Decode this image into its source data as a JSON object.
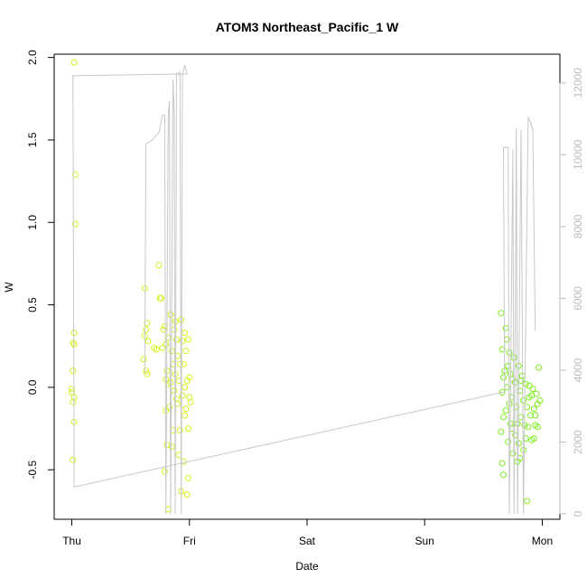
{
  "chart_data": {
    "type": "scatter",
    "title": "ATOM3 Northeast_Pacific_1 W",
    "xlabel": "Date",
    "ylabel": "W",
    "x_unit": "days (Thu = 0)",
    "xlim": [
      -0.15,
      4.15
    ],
    "ylim": [
      -0.8,
      2.02
    ],
    "y2lim": [
      -150,
      12800
    ],
    "x_ticks": [
      {
        "value": 0,
        "label": "Thu"
      },
      {
        "value": 1,
        "label": "Fri"
      },
      {
        "value": 2,
        "label": "Sat"
      },
      {
        "value": 3,
        "label": "Sun"
      },
      {
        "value": 4,
        "label": "Mon"
      }
    ],
    "y_ticks": [
      -0.5,
      0.0,
      0.5,
      1.0,
      1.5,
      2.0
    ],
    "y2_ticks": [
      0,
      2000,
      4000,
      6000,
      8000,
      10000,
      12000
    ],
    "colors": {
      "line": "#c8c8c8",
      "axis": "#000000",
      "right_axis": "#bdbdbd",
      "points_early": "#d9f21c",
      "points_late": "#7ff01c"
    },
    "series": [
      {
        "kind": "points",
        "color_key": "points_early",
        "points": [
          [
            0.02,
            1.97
          ],
          [
            0.03,
            1.29
          ],
          [
            0.03,
            0.99
          ],
          [
            0.02,
            0.33
          ],
          [
            0.01,
            0.27
          ],
          [
            0.02,
            0.26
          ],
          [
            0.01,
            0.1
          ],
          [
            0.0,
            -0.01
          ],
          [
            0.0,
            -0.03
          ],
          [
            0.02,
            -0.06
          ],
          [
            0.01,
            -0.09
          ],
          [
            0.02,
            -0.21
          ],
          [
            0.01,
            -0.44
          ],
          [
            0.62,
            0.6
          ],
          [
            0.64,
            0.39
          ],
          [
            0.63,
            0.35
          ],
          [
            0.62,
            0.31
          ],
          [
            0.65,
            0.28
          ],
          [
            0.61,
            0.17
          ],
          [
            0.63,
            0.1
          ],
          [
            0.64,
            0.08
          ],
          [
            0.7,
            0.24
          ],
          [
            0.72,
            0.23
          ],
          [
            0.74,
            0.74
          ],
          [
            0.75,
            0.54
          ],
          [
            0.76,
            0.54
          ],
          [
            0.78,
            0.35
          ],
          [
            0.79,
            0.37
          ],
          [
            0.8,
            0.26
          ],
          [
            0.77,
            0.24
          ],
          [
            0.81,
            0.1
          ],
          [
            0.8,
            0.05
          ],
          [
            0.82,
            0.02
          ],
          [
            0.8,
            -0.14
          ],
          [
            0.81,
            -0.35
          ],
          [
            0.79,
            -0.51
          ],
          [
            0.82,
            -0.74
          ],
          [
            0.84,
            0.44
          ],
          [
            0.85,
            0.22
          ],
          [
            0.86,
            0.14
          ],
          [
            0.84,
            0.03
          ],
          [
            0.87,
            -0.02
          ],
          [
            0.85,
            -0.36
          ],
          [
            0.88,
            0.4
          ],
          [
            0.89,
            0.29
          ],
          [
            0.9,
            0.19
          ],
          [
            0.91,
            0.04
          ],
          [
            0.9,
            -0.1
          ],
          [
            0.92,
            -0.26
          ],
          [
            0.93,
            0.41
          ],
          [
            0.94,
            0.28
          ],
          [
            0.95,
            0.14
          ],
          [
            0.94,
            -0.05
          ],
          [
            0.96,
            -0.17
          ],
          [
            0.95,
            -0.45
          ],
          [
            0.96,
            0.33
          ],
          [
            0.97,
            0.22
          ],
          [
            0.98,
            0.04
          ],
          [
            0.97,
            -0.13
          ],
          [
            0.99,
            -0.25
          ],
          [
            0.98,
            -0.65
          ],
          [
            0.99,
            0.29
          ],
          [
            1.0,
            0.06
          ],
          [
            1.0,
            -0.06
          ],
          [
            1.01,
            -0.09
          ],
          [
            0.99,
            -0.55
          ],
          [
            0.83,
            -0.12
          ],
          [
            0.86,
            -0.26
          ],
          [
            0.88,
            0.08
          ],
          [
            0.91,
            -0.41
          ],
          [
            0.93,
            -0.63
          ],
          [
            0.82,
            0.3
          ],
          [
            0.87,
            0.35
          ],
          [
            0.89,
            -0.07
          ],
          [
            0.92,
            0.14
          ],
          [
            0.96,
            0.0
          ]
        ]
      },
      {
        "kind": "points",
        "color_key": "points_late",
        "points": [
          [
            3.65,
            0.45
          ],
          [
            3.66,
            0.23
          ],
          [
            3.67,
            0.06
          ],
          [
            3.66,
            -0.03
          ],
          [
            3.65,
            -0.27
          ],
          [
            3.66,
            -0.46
          ],
          [
            3.67,
            -0.53
          ],
          [
            3.69,
            0.36
          ],
          [
            3.7,
            0.29
          ],
          [
            3.71,
            0.13
          ],
          [
            3.7,
            0.0
          ],
          [
            3.69,
            -0.14
          ],
          [
            3.71,
            -0.33
          ],
          [
            3.72,
            0.21
          ],
          [
            3.73,
            0.08
          ],
          [
            3.74,
            -0.06
          ],
          [
            3.73,
            -0.22
          ],
          [
            3.75,
            -0.4
          ],
          [
            3.76,
            0.18
          ],
          [
            3.77,
            0.03
          ],
          [
            3.78,
            -0.12
          ],
          [
            3.77,
            -0.29
          ],
          [
            3.79,
            -0.45
          ],
          [
            3.8,
            0.13
          ],
          [
            3.81,
            -0.02
          ],
          [
            3.82,
            -0.18
          ],
          [
            3.8,
            -0.34
          ],
          [
            3.83,
            0.07
          ],
          [
            3.84,
            -0.08
          ],
          [
            3.85,
            -0.23
          ],
          [
            3.84,
            -0.38
          ],
          [
            3.86,
            0.02
          ],
          [
            3.87,
            -0.12
          ],
          [
            3.88,
            -0.24
          ],
          [
            3.87,
            -0.69
          ],
          [
            3.89,
            -0.06
          ],
          [
            3.9,
            -0.17
          ],
          [
            3.91,
            -0.32
          ],
          [
            3.92,
            -0.01
          ],
          [
            3.93,
            -0.13
          ],
          [
            3.94,
            -0.23
          ],
          [
            3.95,
            -0.04
          ],
          [
            3.96,
            -0.1
          ],
          [
            3.97,
            0.12
          ],
          [
            3.98,
            -0.08
          ],
          [
            3.96,
            -0.24
          ],
          [
            3.93,
            -0.31
          ],
          [
            3.68,
            0.1
          ],
          [
            3.72,
            -0.1
          ],
          [
            3.75,
            0.05
          ],
          [
            3.79,
            -0.22
          ],
          [
            3.82,
            0.04
          ],
          [
            3.86,
            -0.31
          ],
          [
            3.89,
            0.01
          ],
          [
            3.91,
            -0.05
          ],
          [
            3.94,
            -0.17
          ],
          [
            3.67,
            -0.18
          ],
          [
            3.74,
            -0.25
          ],
          [
            3.81,
            -0.43
          ]
        ]
      },
      {
        "kind": "line",
        "axis": "right",
        "color_key": "line",
        "points": [
          [
            0.0,
            12200
          ],
          [
            0.0,
            12200
          ],
          [
            0.98,
            12250
          ],
          [
            0.96,
            12500
          ],
          [
            0.94,
            12200
          ],
          [
            0.93,
            0
          ],
          [
            0.92,
            12300
          ],
          [
            0.89,
            12250
          ],
          [
            0.88,
            0
          ],
          [
            0.87,
            11300
          ],
          [
            0.86,
            12100
          ],
          [
            0.84,
            0
          ],
          [
            0.83,
            11500
          ],
          [
            0.82,
            11100
          ],
          [
            0.8,
            0
          ],
          [
            0.79,
            11100
          ],
          [
            0.77,
            11100
          ],
          [
            0.74,
            10600
          ],
          [
            0.72,
            10550
          ],
          [
            0.68,
            10400
          ],
          [
            0.63,
            10300
          ],
          [
            0.62,
            3900
          ],
          [
            0.62,
            3900
          ]
        ]
      },
      {
        "kind": "line",
        "axis": "right",
        "color_key": "line",
        "points": [
          [
            0.01,
            12200
          ],
          [
            0.02,
            750
          ],
          [
            3.68,
            3400
          ],
          [
            3.67,
            10200
          ],
          [
            3.71,
            10200
          ],
          [
            3.72,
            0
          ],
          [
            3.75,
            10150
          ],
          [
            3.76,
            0
          ],
          [
            3.78,
            10750
          ],
          [
            3.79,
            0
          ],
          [
            3.82,
            10700
          ],
          [
            3.84,
            0
          ],
          [
            3.88,
            11050
          ],
          [
            3.9,
            10900
          ],
          [
            3.92,
            10700
          ],
          [
            3.94,
            5100
          ]
        ]
      }
    ]
  }
}
